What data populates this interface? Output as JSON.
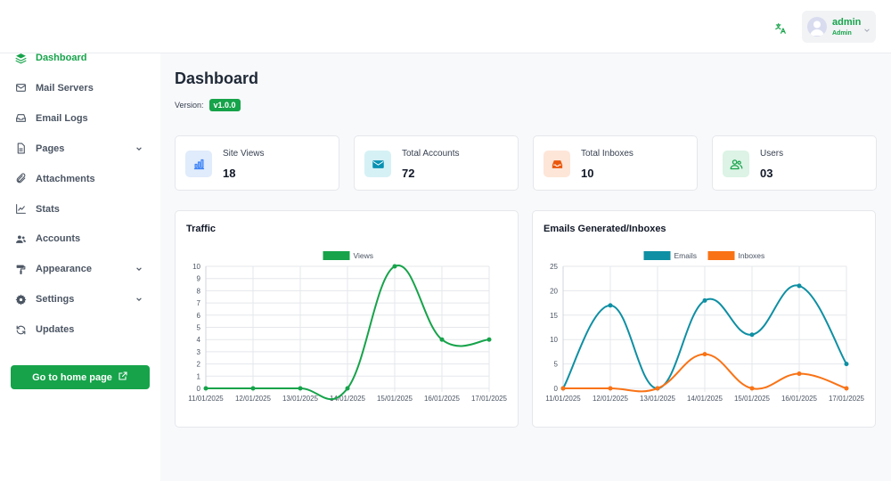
{
  "topbar": {
    "translate_icon": "translate-icon",
    "user": {
      "name": "admin",
      "role": "Admin"
    }
  },
  "sidebar": {
    "items": [
      {
        "label": "Dashboard",
        "icon": "layers-icon",
        "active": true,
        "has_submenu": false
      },
      {
        "label": "Mail Servers",
        "icon": "envelope-icon",
        "active": false,
        "has_submenu": false
      },
      {
        "label": "Email Logs",
        "icon": "inbox-icon",
        "active": false,
        "has_submenu": false
      },
      {
        "label": "Pages",
        "icon": "file-icon",
        "active": false,
        "has_submenu": true
      },
      {
        "label": "Attachments",
        "icon": "paperclip-icon",
        "active": false,
        "has_submenu": false
      },
      {
        "label": "Stats",
        "icon": "line-chart-icon",
        "active": false,
        "has_submenu": false
      },
      {
        "label": "Accounts",
        "icon": "users-icon",
        "active": false,
        "has_submenu": false
      },
      {
        "label": "Appearance",
        "icon": "paint-roller-icon",
        "active": false,
        "has_submenu": true
      },
      {
        "label": "Settings",
        "icon": "gear-icon",
        "active": false,
        "has_submenu": true
      },
      {
        "label": "Updates",
        "icon": "refresh-icon",
        "active": false,
        "has_submenu": false
      }
    ],
    "home_button": "Go to home page"
  },
  "main": {
    "title": "Dashboard",
    "version_label": "Version:",
    "version": "v1.0.0",
    "stats": [
      {
        "label": "Site Views",
        "value": "18",
        "icon": "bar-chart-icon",
        "color": "#3b82f6",
        "bg": "#e0ebfb"
      },
      {
        "label": "Total Accounts",
        "value": "72",
        "icon": "envelope-icon",
        "color": "#0891b2",
        "bg": "#d6f1f5"
      },
      {
        "label": "Total Inboxes",
        "value": "10",
        "icon": "inbox-icon",
        "color": "#ea580c",
        "bg": "#fde6d8"
      },
      {
        "label": "Users",
        "value": "03",
        "icon": "users-icon",
        "color": "#16a34a",
        "bg": "#dcf3e5"
      }
    ]
  },
  "chart_data": [
    {
      "type": "line",
      "title": "Traffic",
      "x": [
        "11/01/2025",
        "12/01/2025",
        "13/01/2025",
        "14/01/2025",
        "15/01/2025",
        "16/01/2025",
        "17/01/2025"
      ],
      "series": [
        {
          "name": "Views",
          "values": [
            0,
            0,
            0,
            0,
            10,
            4,
            4
          ],
          "color": "#16a34a"
        }
      ],
      "ylim": [
        0,
        10
      ],
      "yticks": [
        0,
        1,
        2,
        3,
        4,
        5,
        6,
        7,
        8,
        9,
        10
      ],
      "legend": "top-center",
      "grid": true
    },
    {
      "type": "line",
      "title": "Emails Generated/Inboxes",
      "x": [
        "11/01/2025",
        "12/01/2025",
        "13/01/2025",
        "14/01/2025",
        "15/01/2025",
        "16/01/2025",
        "17/01/2025"
      ],
      "series": [
        {
          "name": "Emails",
          "values": [
            0,
            17,
            0,
            18,
            11,
            21,
            5
          ],
          "color": "#0e8fa3"
        },
        {
          "name": "Inboxes",
          "values": [
            0,
            0,
            0,
            7,
            0,
            3,
            0
          ],
          "color": "#f97316"
        }
      ],
      "ylim": [
        0,
        25
      ],
      "yticks": [
        0,
        5,
        10,
        15,
        20,
        25
      ],
      "legend": "top-center",
      "grid": true
    }
  ]
}
